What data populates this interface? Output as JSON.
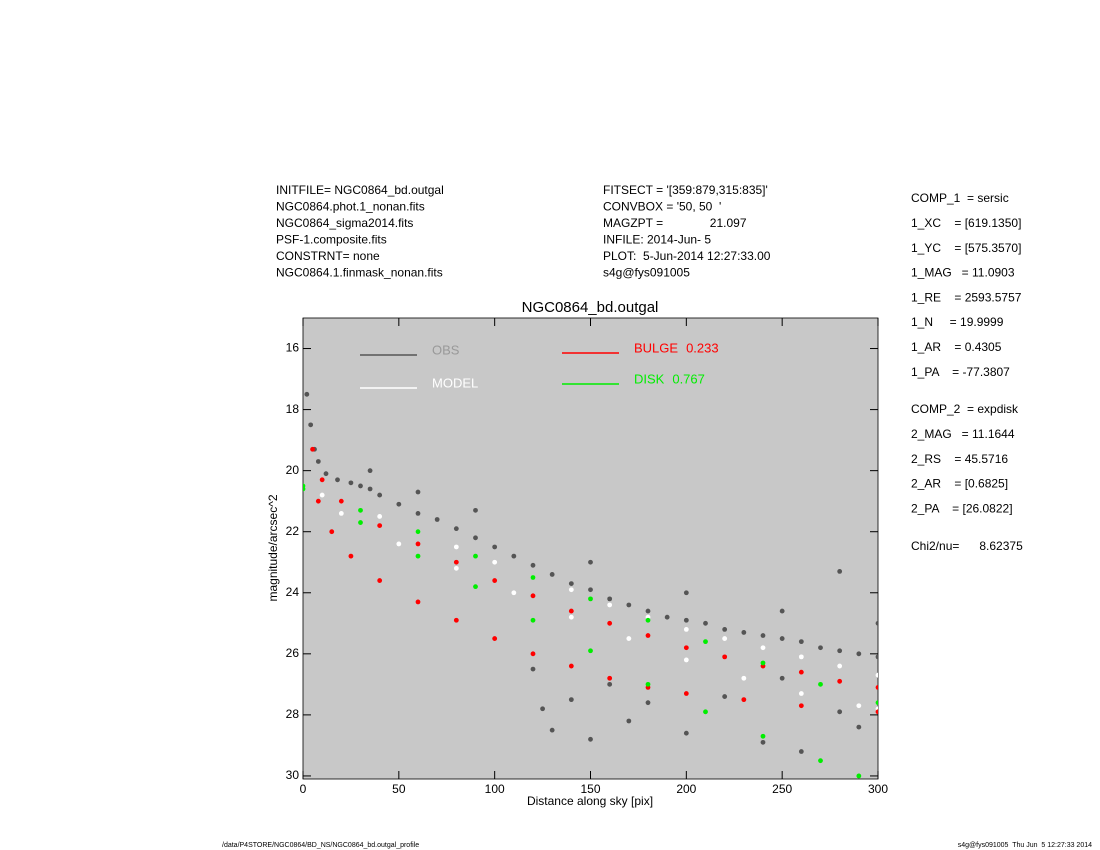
{
  "header": {
    "left": [
      "INITFILE= NGC0864_bd.outgal",
      "NGC0864.phot.1_nonan.fits",
      "NGC0864_sigma2014.fits",
      "PSF-1.composite.fits",
      "CONSTRNT= none",
      "NGC0864.1.finmask_nonan.fits"
    ],
    "middle": [
      "FITSECT = '[359:879,315:835]'",
      "CONVBOX = '50, 50  '",
      "MAGZPT =              21.097",
      "INFILE: 2014-Jun- 5",
      "PLOT:  5-Jun-2014 12:27:33.00",
      "s4g@fys091005"
    ]
  },
  "parameters": {
    "comp1": [
      "COMP_1  = sersic",
      "1_XC    = [619.1350]",
      "1_YC    = [575.3570]",
      "1_MAG   = 11.0903",
      "1_RE    = 2593.5757",
      "1_N     = 19.9999",
      "1_AR    = 0.4305",
      "1_PA    = -77.3807"
    ],
    "comp2": [
      "COMP_2  = expdisk",
      "2_MAG   = 11.1644",
      "2_RS    = 45.5716",
      "2_AR    = [0.6825]",
      "2_PA    = [26.0822]"
    ],
    "chi2": "Chi2/nu=      8.62375"
  },
  "footer": {
    "left": "/data/P4STORE/NGC0864/BD_NS/NGC0864_bd.outgal_profile",
    "right": "s4g@fys091005  Thu Jun  5 12:27:33 2014"
  },
  "chart_data": {
    "type": "scatter",
    "title": "NGC0864_bd.outgal",
    "x_label": "Distance along sky [pix]",
    "y_label": "magnitude/arcsec^2",
    "xlim": [
      0,
      300
    ],
    "ylim": [
      15,
      30.1
    ],
    "y_inverted": true,
    "xticks": [
      0,
      50,
      100,
      150,
      200,
      250,
      300
    ],
    "yticks": [
      16,
      18,
      20,
      22,
      24,
      26,
      28,
      30
    ],
    "background": "#c8c8c8",
    "series": [
      {
        "name": "OBS",
        "color": "#555555",
        "x": [
          2,
          4,
          6,
          8,
          12,
          18,
          25,
          30,
          35,
          40,
          50,
          60,
          70,
          80,
          90,
          100,
          110,
          120,
          130,
          140,
          150,
          160,
          170,
          180,
          190,
          200,
          210,
          220,
          230,
          240,
          250,
          260,
          270,
          280,
          290,
          300,
          120,
          125,
          130,
          140,
          150,
          160,
          170,
          180,
          200,
          220,
          240,
          250,
          260,
          280,
          290,
          35,
          60,
          90,
          150,
          200,
          250,
          280,
          300
        ],
        "values": [
          17.5,
          18.5,
          19.3,
          19.7,
          20.1,
          20.3,
          20.4,
          20.5,
          20.6,
          20.8,
          21.1,
          21.4,
          21.6,
          21.9,
          22.2,
          22.5,
          22.8,
          23.1,
          23.4,
          23.7,
          23.9,
          24.2,
          24.4,
          24.6,
          24.8,
          24.9,
          25.0,
          25.2,
          25.3,
          25.4,
          25.5,
          25.6,
          25.8,
          25.9,
          26.0,
          26.1,
          26.5,
          27.8,
          28.5,
          27.5,
          28.8,
          27.0,
          28.2,
          27.6,
          28.6,
          27.4,
          28.9,
          26.8,
          29.2,
          27.9,
          28.4,
          20.0,
          20.7,
          21.3,
          23.0,
          24.0,
          24.6,
          23.3,
          25.0
        ]
      },
      {
        "name": "MODEL",
        "color": "#ffffff",
        "x": [
          0,
          10,
          20,
          40,
          60,
          80,
          100,
          120,
          140,
          160,
          180,
          200,
          220,
          240,
          260,
          280,
          300,
          20,
          50,
          80,
          110,
          140,
          170,
          200,
          230,
          260,
          290,
          300
        ],
        "values": [
          20.5,
          20.8,
          21.0,
          21.5,
          22.0,
          22.5,
          23.0,
          23.5,
          23.9,
          24.4,
          24.8,
          25.2,
          25.5,
          25.8,
          26.1,
          26.4,
          26.7,
          21.4,
          22.4,
          23.2,
          24.0,
          24.8,
          25.5,
          26.2,
          26.8,
          27.3,
          27.7,
          27.8
        ]
      },
      {
        "name": "BULGE",
        "fraction": 0.233,
        "color": "#ff0000",
        "x": [
          5,
          10,
          20,
          40,
          60,
          80,
          100,
          120,
          140,
          160,
          180,
          200,
          220,
          240,
          260,
          280,
          300,
          8,
          15,
          25,
          40,
          60,
          80,
          100,
          120,
          140,
          160,
          180,
          200,
          230,
          260,
          300
        ],
        "values": [
          19.3,
          20.3,
          21.0,
          21.8,
          22.4,
          23.0,
          23.6,
          24.1,
          24.6,
          25.0,
          25.4,
          25.8,
          26.1,
          26.4,
          26.6,
          26.9,
          27.1,
          21.0,
          22.0,
          22.8,
          23.6,
          24.3,
          24.9,
          25.5,
          26.0,
          26.4,
          26.8,
          27.1,
          27.3,
          27.5,
          27.7,
          27.9
        ]
      },
      {
        "name": "DISK",
        "fraction": 0.767,
        "color": "#00ee00",
        "x": [
          0,
          30,
          60,
          90,
          120,
          150,
          180,
          210,
          240,
          270,
          300,
          0,
          30,
          60,
          90,
          120,
          150,
          180,
          210,
          240,
          270,
          290
        ],
        "values": [
          20.5,
          21.3,
          22.0,
          22.8,
          23.5,
          24.2,
          24.9,
          25.6,
          26.3,
          27.0,
          27.6,
          20.6,
          21.7,
          22.8,
          23.8,
          24.9,
          25.9,
          27.0,
          27.9,
          28.7,
          29.5,
          30.0
        ]
      }
    ]
  }
}
